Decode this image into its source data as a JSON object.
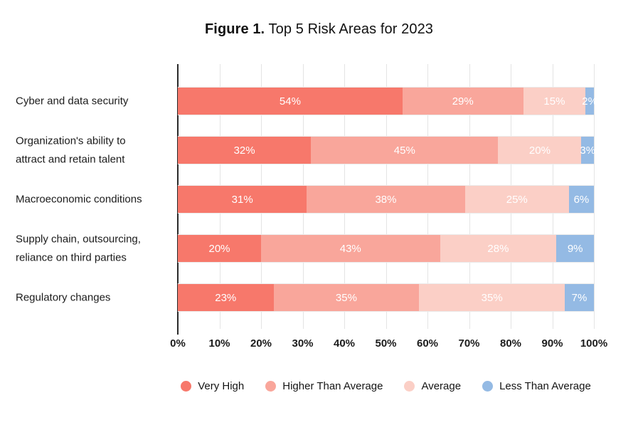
{
  "figure": {
    "title_prefix": "Figure 1.",
    "title_rest": " Top 5 Risk Areas for 2023"
  },
  "chart_data": {
    "type": "bar",
    "orientation": "horizontal",
    "stacked": true,
    "title": "Figure 1. Top 5 Risk Areas for 2023",
    "categories": [
      "Cyber and data security",
      "Organization's ability to attract and retain talent",
      "Macroeconomic conditions",
      "Supply chain, outsourcing, reliance on third parties",
      "Regulatory changes"
    ],
    "series": [
      {
        "name": "Very High",
        "color": "#F7786B",
        "values": [
          54,
          32,
          31,
          20,
          23
        ]
      },
      {
        "name": "Higher Than Average",
        "color": "#F9A69B",
        "values": [
          29,
          45,
          38,
          43,
          35
        ]
      },
      {
        "name": "Average",
        "color": "#FBCFC6",
        "values": [
          15,
          20,
          25,
          28,
          35
        ]
      },
      {
        "name": "Less Than Average",
        "color": "#94BAE4",
        "values": [
          2,
          3,
          6,
          9,
          7
        ]
      }
    ],
    "value_label_suffix": "%",
    "x_ticks": [
      "0%",
      "10%",
      "20%",
      "30%",
      "40%",
      "50%",
      "60%",
      "70%",
      "80%",
      "90%",
      "100%"
    ],
    "xlim": [
      0,
      100
    ],
    "grid": true,
    "legend_position": "bottom",
    "colors": {
      "background": "#FFFFFF",
      "axis": "#2A2A2A",
      "grid_vertical": "#E4E4E4",
      "grid_horizontal": "#EBEBEB",
      "category_text": "#1B1B1B",
      "tick_text": "#1C1C1C",
      "value_text": "#FFFFFF"
    }
  }
}
